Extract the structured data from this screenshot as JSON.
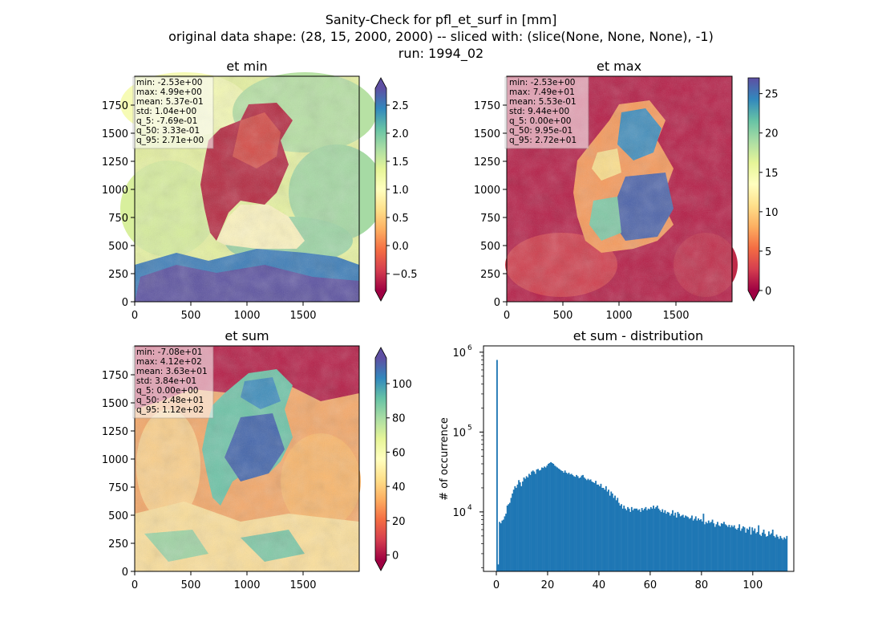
{
  "figure": {
    "suptitle": [
      "Sanity-Check for pfl_et_surf in [mm]",
      "original data shape: (28, 15, 2000, 2000) -- sliced with: (slice(None, None, None), -1)",
      "run: 1994_02"
    ]
  },
  "chart_data": [
    {
      "type": "heatmap",
      "title": "et min",
      "xlim": [
        0,
        2000
      ],
      "ylim": [
        0,
        2000
      ],
      "xticks": [
        "0",
        "500",
        "1000",
        "1500"
      ],
      "yticks": [
        "0",
        "250",
        "500",
        "750",
        "1000",
        "1250",
        "1500",
        "1750"
      ],
      "colormap": "Spectral",
      "colorbar": {
        "range": [
          -0.8,
          2.8
        ],
        "extend": "both",
        "ticks": [
          "−0.5",
          "0.0",
          "0.5",
          "1.0",
          "1.5",
          "2.0",
          "2.5"
        ],
        "tick_values": [
          -0.5,
          0,
          0.5,
          1.0,
          1.5,
          2.0,
          2.5
        ]
      },
      "stats": [
        "min: -2.53e+00",
        "max: 4.99e+00",
        "mean: 5.37e-01",
        "std: 1.04e+00",
        "q_5: -7.69e-01",
        "q_50: 3.33e-01",
        "q_95: 2.71e+00"
      ]
    },
    {
      "type": "heatmap",
      "title": "et max",
      "xlim": [
        0,
        2000
      ],
      "ylim": [
        0,
        2000
      ],
      "xticks": [
        "0",
        "500",
        "1000",
        "1500"
      ],
      "yticks": [
        "0",
        "250",
        "500",
        "750",
        "1000",
        "1250",
        "1500",
        "1750"
      ],
      "colormap": "Spectral",
      "colorbar": {
        "range": [
          0,
          27
        ],
        "extend": "min",
        "ticks": [
          "0",
          "5",
          "10",
          "15",
          "20",
          "25"
        ],
        "tick_values": [
          0,
          5,
          10,
          15,
          20,
          25
        ]
      },
      "stats": [
        "min: -2.53e+00",
        "max: 7.49e+01",
        "mean: 5.53e-01",
        "std: 9.44e+00",
        "q_5: 0.00e+00",
        "q_50: 9.95e-01",
        "q_95: 2.72e+01"
      ]
    },
    {
      "type": "heatmap",
      "title": "et sum",
      "xlim": [
        0,
        2000
      ],
      "ylim": [
        0,
        2000
      ],
      "xticks": [
        "0",
        "500",
        "1000",
        "1500"
      ],
      "yticks": [
        "0",
        "250",
        "500",
        "750",
        "1000",
        "1250",
        "1500",
        "1750"
      ],
      "colormap": "Spectral",
      "colorbar": {
        "range": [
          -3,
          115
        ],
        "extend": "both",
        "ticks": [
          "0",
          "20",
          "40",
          "60",
          "80",
          "100"
        ],
        "tick_values": [
          0,
          20,
          40,
          60,
          80,
          100
        ]
      },
      "stats": [
        "min: -7.08e+01",
        "max: 4.12e+02",
        "mean: 3.63e+01",
        "std: 3.84e+01",
        "q_5: 0.00e+00",
        "q_50: 2.48e+01",
        "q_95: 1.12e+02"
      ]
    },
    {
      "type": "bar",
      "title": "et sum - distribution",
      "ylabel": "# of occurrence",
      "xlabel": "",
      "yscale": "log",
      "xlim": [
        -5,
        116
      ],
      "ylim": [
        1800,
        1200000
      ],
      "xticks": [
        "0",
        "20",
        "40",
        "60",
        "80",
        "100"
      ],
      "xtick_values": [
        0,
        20,
        40,
        60,
        80,
        100
      ],
      "yticks": [
        {
          "base": "10",
          "exp": "4",
          "value": 10000
        },
        {
          "base": "10",
          "exp": "5",
          "value": 100000
        },
        {
          "base": "10",
          "exp": "6",
          "value": 1000000
        }
      ],
      "bar_color": "#1f77b4",
      "bin_start": 0,
      "bin_width": 0.5,
      "counts": [
        800000,
        2200,
        7500,
        7200,
        7800,
        8000,
        8800,
        9500,
        12000,
        12500,
        13000,
        15000,
        17000,
        19000,
        21000,
        20000,
        22000,
        25000,
        23500,
        21000,
        24000,
        27000,
        26000,
        28000,
        27000,
        30000,
        29000,
        32000,
        33000,
        32000,
        30000,
        34000,
        34500,
        33000,
        33500,
        36000,
        35500,
        37000,
        36000,
        38000,
        40000,
        41000,
        42000,
        41000,
        40000,
        38000,
        37000,
        36000,
        35000,
        34000,
        33000,
        32500,
        31000,
        33000,
        31000,
        30000,
        31000,
        29500,
        30000,
        29000,
        28000,
        27500,
        29000,
        28000,
        26500,
        27000,
        28500,
        29000,
        27000,
        26000,
        25000,
        26000,
        25000,
        25500,
        24000,
        23500,
        23000,
        24500,
        22000,
        22000,
        21000,
        22500,
        20000,
        20000,
        19000,
        21000,
        18000,
        19000,
        16000,
        18000,
        17000,
        15000,
        16000,
        14000,
        15000,
        13000,
        12000,
        12500,
        11000,
        12000,
        11000,
        10500,
        11500,
        11000,
        10000,
        11500,
        10500,
        11000,
        11000,
        11000,
        10500,
        10800,
        10000,
        11200,
        10500,
        11000,
        11500,
        10500,
        11000,
        10800,
        11500,
        11000,
        12000,
        11000,
        11500,
        12000,
        11000,
        10500,
        10000,
        10800,
        9800,
        10500,
        9500,
        10000,
        9800,
        9000,
        9500,
        10500,
        9000,
        9800,
        8500,
        10000,
        9500,
        8800,
        9000,
        9200,
        8500,
        9000,
        8800,
        8600,
        8200,
        8400,
        9000,
        7800,
        8200,
        8800,
        7800,
        8300,
        7900,
        8100,
        7600,
        9500,
        7000,
        7500,
        7200,
        7800,
        7300,
        7500,
        8000,
        7200,
        6500,
        7000,
        7500,
        6800,
        6600,
        7200,
        7100,
        7500,
        7000,
        6800,
        6500,
        6900,
        6400,
        6800,
        6500,
        6800,
        6200,
        6000,
        6300,
        7000,
        5800,
        6200,
        6600,
        6400,
        5500,
        6200,
        6000,
        6500,
        5200,
        6400,
        5800,
        6200,
        5400,
        5600,
        6800,
        5200,
        5000,
        5500,
        6000,
        5300,
        4900,
        5000,
        5700,
        5200,
        5400,
        6000,
        5000,
        4800,
        5200,
        4900,
        4600,
        5000,
        4700,
        4500,
        4800,
        4600,
        5000
      ]
    }
  ]
}
